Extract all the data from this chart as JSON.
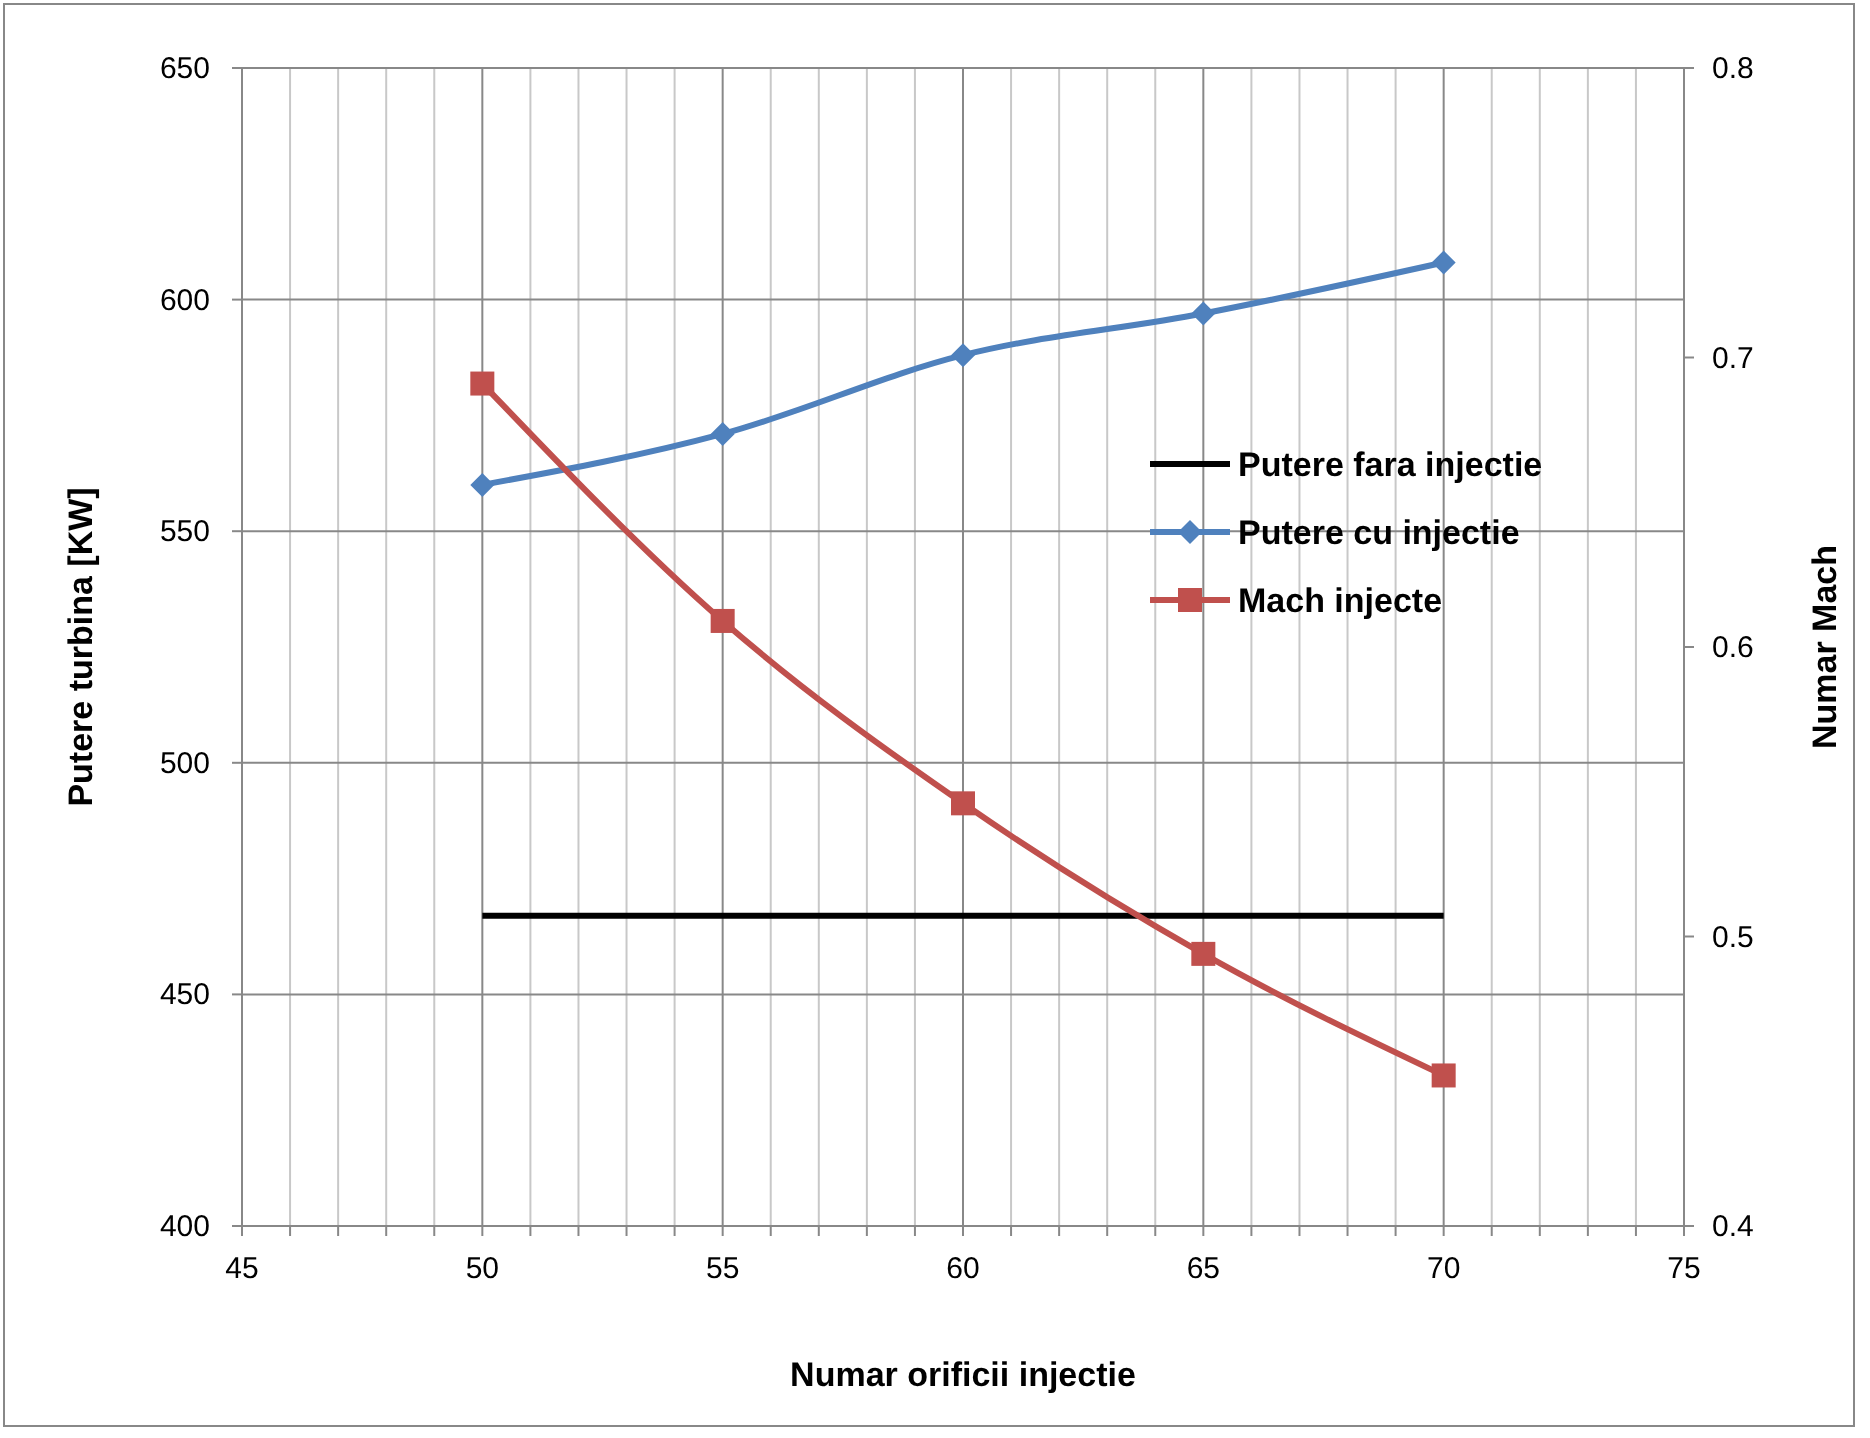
{
  "chart_data": {
    "type": "line",
    "xlabel": "Numar orificii injectie",
    "ylabel": "Putere turbina [KW]",
    "y2label": "Numar Mach",
    "x": [
      50,
      55,
      60,
      65,
      70
    ],
    "series": [
      {
        "name": "Putere fara injectie",
        "color": "#000000",
        "values": [
          467,
          467,
          467,
          467,
          467
        ],
        "marker": "none"
      },
      {
        "name": "Putere cu injectie",
        "color": "#4f81bd",
        "values": [
          560,
          571,
          588,
          597,
          608
        ],
        "marker": "diamond"
      },
      {
        "name": "Mach injecte",
        "color": "#c0504d",
        "values": [
          0.691,
          0.609,
          0.546,
          0.494,
          0.452
        ],
        "marker": "square",
        "axis": "y2"
      }
    ],
    "xlim": [
      45,
      75
    ],
    "xticks": [
      45,
      {
        "value": 46,
        "label": null
      },
      {
        "value": 47,
        "label": null
      },
      {
        "value": 48,
        "label": null
      },
      {
        "value": 49,
        "label": null
      },
      50,
      {
        "value": 51,
        "label": null
      },
      {
        "value": 52,
        "label": null
      },
      {
        "value": 53,
        "label": null
      },
      {
        "value": 54,
        "label": null
      },
      55,
      {
        "value": 56,
        "label": null
      },
      {
        "value": 57,
        "label": null
      },
      {
        "value": 58,
        "label": null
      },
      {
        "value": 59,
        "label": null
      },
      60,
      {
        "value": 61,
        "label": null
      },
      {
        "value": 62,
        "label": null
      },
      {
        "value": 63,
        "label": null
      },
      {
        "value": 64,
        "label": null
      },
      65,
      {
        "value": 66,
        "label": null
      },
      {
        "value": 67,
        "label": null
      },
      {
        "value": 68,
        "label": null
      },
      {
        "value": 69,
        "label": null
      },
      70,
      {
        "value": 71,
        "label": null
      },
      {
        "value": 72,
        "label": null
      },
      {
        "value": 73,
        "label": null
      },
      {
        "value": 74,
        "label": null
      },
      75
    ],
    "ylim": [
      400,
      650
    ],
    "yticks": [
      400,
      450,
      500,
      550,
      600,
      650
    ],
    "y2lim": [
      0.4,
      0.8
    ],
    "y2ticks": [
      0.4,
      0.5,
      0.6,
      0.7,
      0.8
    ],
    "grid": true,
    "legend": "right",
    "line_style": "solid"
  }
}
